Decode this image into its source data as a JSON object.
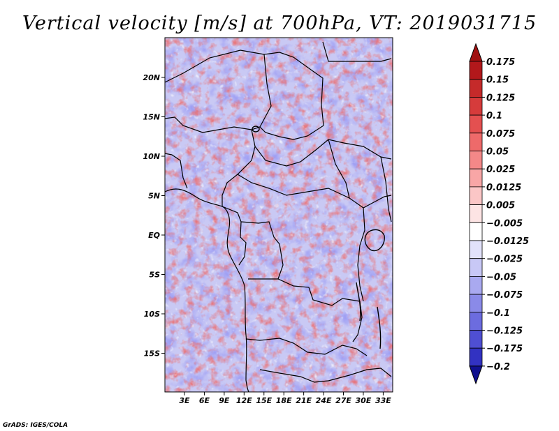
{
  "title": "Vertical velocity [m/s] at 700hPa, VT: 2019031715",
  "credit": "GrADS: IGES/COLA",
  "map": {
    "lat_labels": [
      {
        "value": 20,
        "label": "20N"
      },
      {
        "value": 15,
        "label": "15N"
      },
      {
        "value": 10,
        "label": "10N"
      },
      {
        "value": 5,
        "label": "5N"
      },
      {
        "value": 0,
        "label": "EQ"
      },
      {
        "value": -5,
        "label": "5S"
      },
      {
        "value": -10,
        "label": "10S"
      },
      {
        "value": -15,
        "label": "15S"
      }
    ],
    "lon_labels": [
      {
        "value": 3,
        "label": "3E"
      },
      {
        "value": 6,
        "label": "6E"
      },
      {
        "value": 9,
        "label": "9E"
      },
      {
        "value": 12,
        "label": "12E"
      },
      {
        "value": 15,
        "label": "15E"
      },
      {
        "value": 18,
        "label": "18E"
      },
      {
        "value": 21,
        "label": "21E"
      },
      {
        "value": 24,
        "label": "24E"
      },
      {
        "value": 27,
        "label": "27E"
      },
      {
        "value": 30,
        "label": "30E"
      },
      {
        "value": 33,
        "label": "33E"
      }
    ],
    "lat_range": [
      -20,
      25
    ],
    "lon_range": [
      0,
      35
    ],
    "field": "vertical velocity",
    "level": "700hPa"
  },
  "colorbar": {
    "levels": [
      {
        "label": "0.175",
        "color": "#b2181b"
      },
      {
        "label": "0.15",
        "color": "#c52a2a"
      },
      {
        "label": "0.125",
        "color": "#d63b3b"
      },
      {
        "label": "0.1",
        "color": "#e45050"
      },
      {
        "label": "0.075",
        "color": "#ee6a6a"
      },
      {
        "label": "0.05",
        "color": "#f48888"
      },
      {
        "label": "0.025",
        "color": "#f8a6a6"
      },
      {
        "label": "0.0125",
        "color": "#fbc6c6"
      },
      {
        "label": "0.005",
        "color": "#fde4e4"
      },
      {
        "label": "−0.005",
        "color": "#ffffff"
      },
      {
        "label": "−0.0125",
        "color": "#e2e2fb"
      },
      {
        "label": "−0.025",
        "color": "#c8c8f6"
      },
      {
        "label": "−0.05",
        "color": "#a9a9f0"
      },
      {
        "label": "−0.075",
        "color": "#8a8ae8"
      },
      {
        "label": "−0.1",
        "color": "#6c6cdf"
      },
      {
        "label": "−0.125",
        "color": "#4f4fd3"
      },
      {
        "label": "−0.175",
        "color": "#3232c2"
      },
      {
        "label": "−0.2",
        "color": "#1a1aa8"
      }
    ],
    "top_color": "#a01010",
    "bottom_color": "#10108f"
  }
}
